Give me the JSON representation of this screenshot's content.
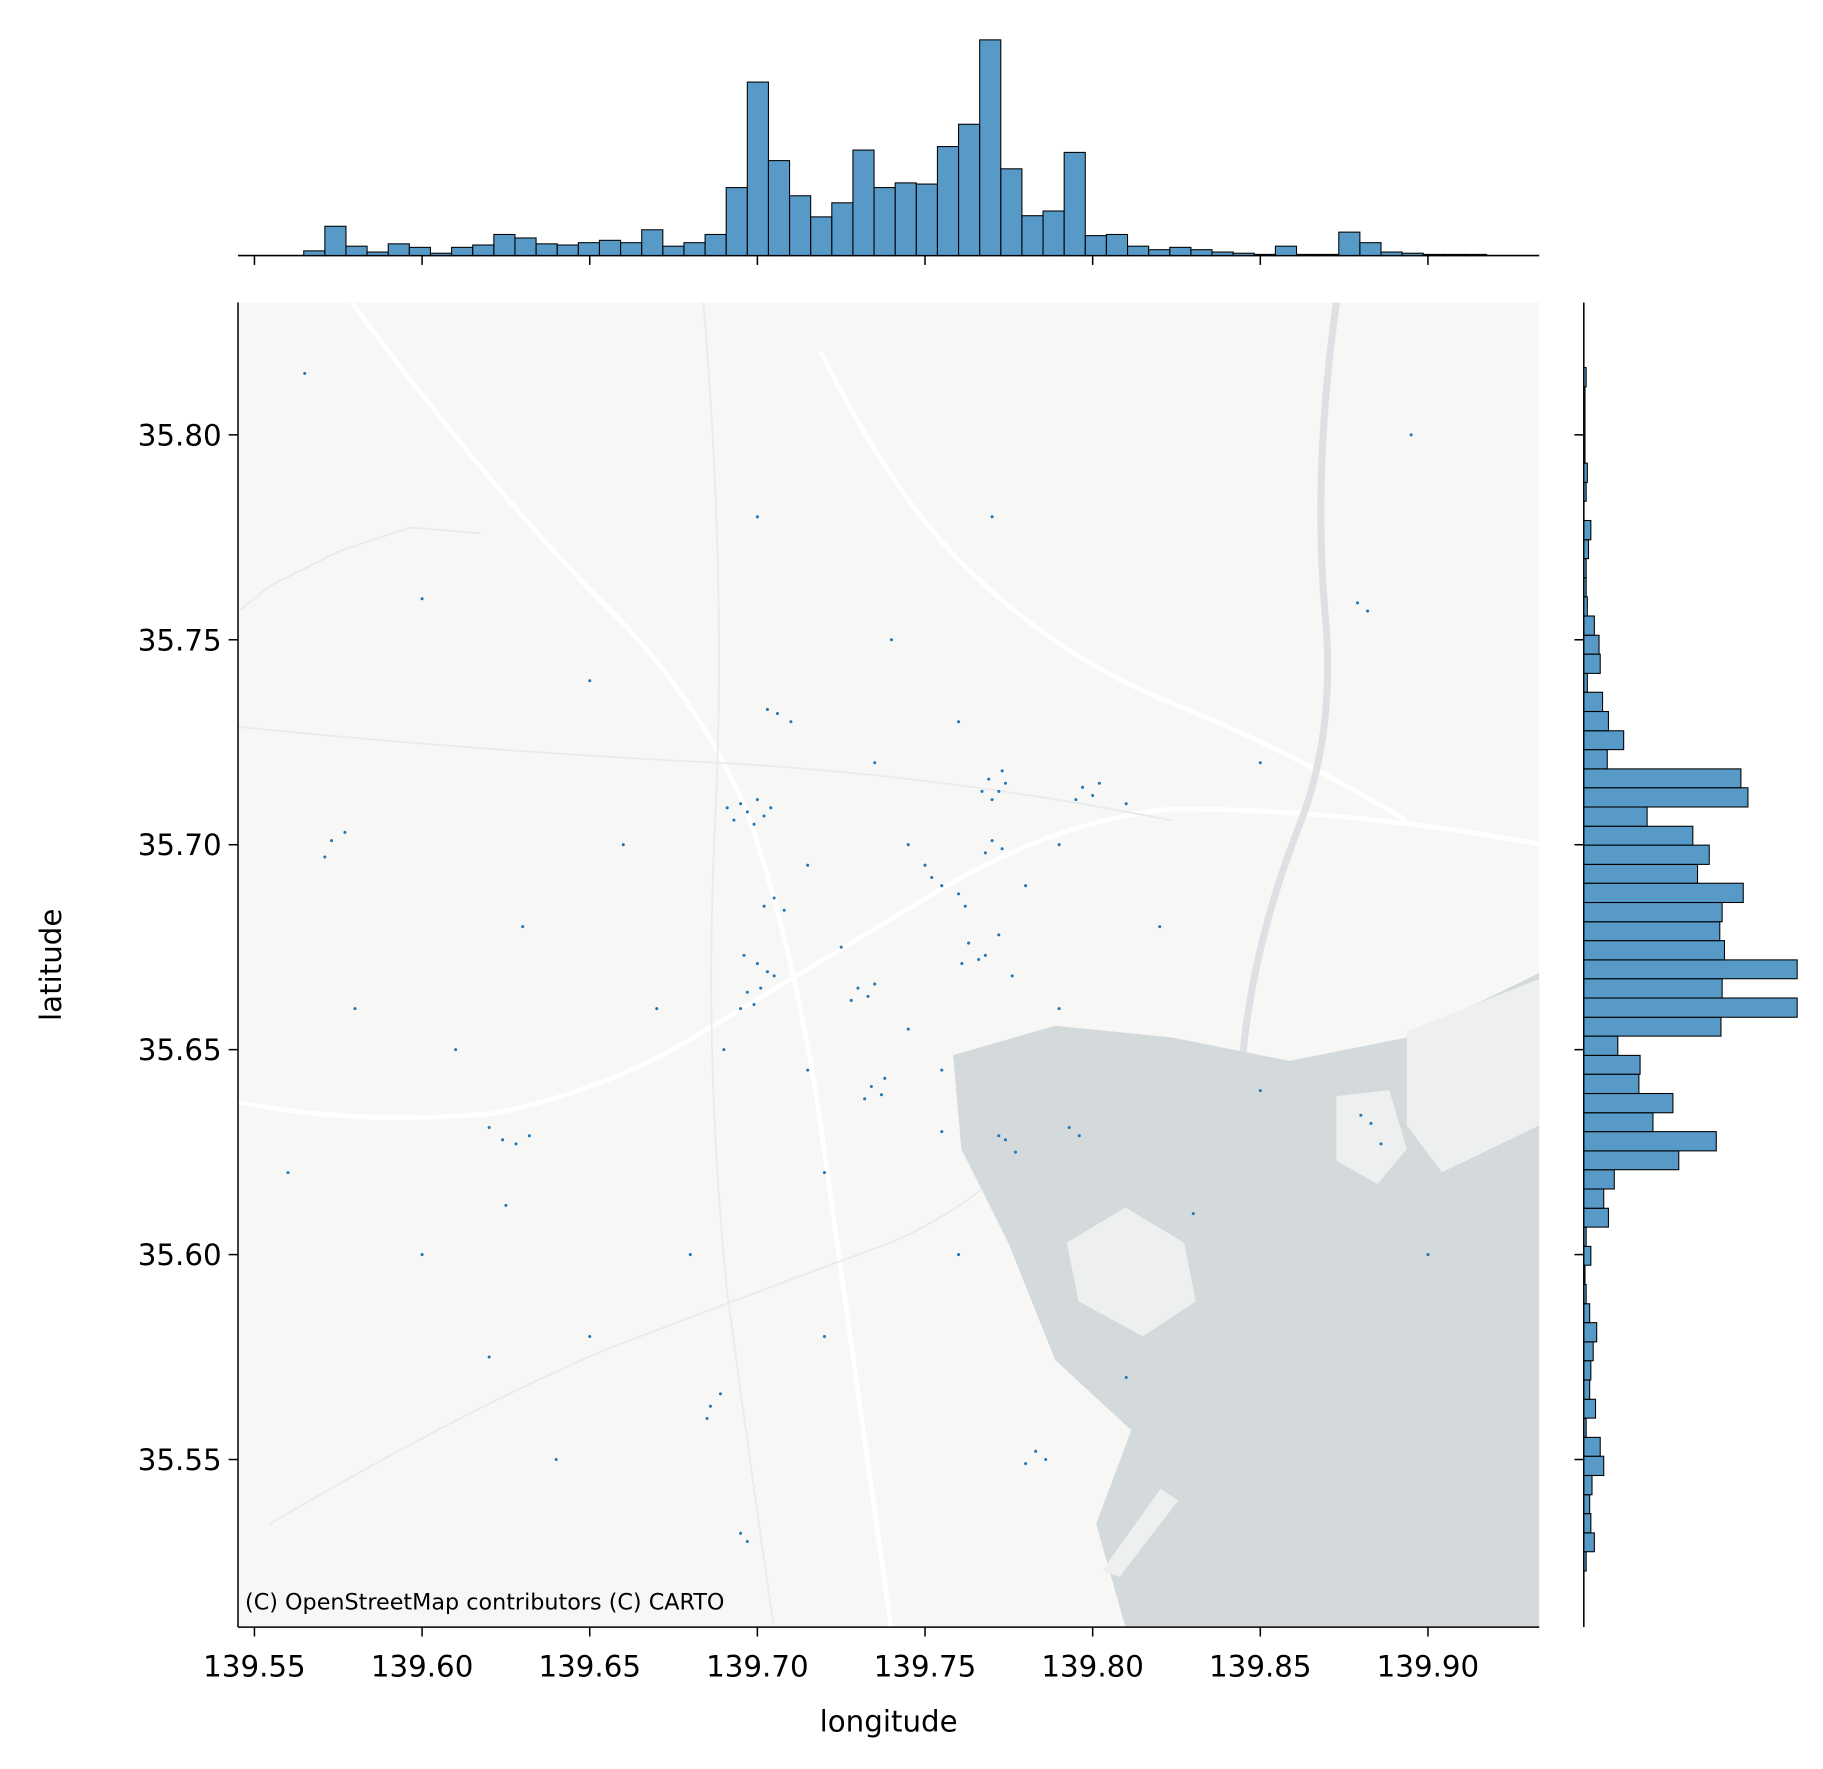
{
  "chart_data": [
    {
      "type": "scatter",
      "x_label": "longitude",
      "y_label": "latitude",
      "attribution": "(C) OpenStreetMap contributors (C) CARTO",
      "color": "#1f77b4",
      "x": [
        139.695,
        139.697,
        139.7,
        139.702,
        139.693,
        139.699,
        139.704,
        139.691,
        139.769,
        139.772,
        139.774,
        139.77,
        139.767,
        139.773,
        139.797,
        139.8,
        139.802,
        139.795,
        139.81,
        139.77,
        139.773,
        139.768,
        139.705,
        139.708,
        139.702,
        139.697,
        139.699,
        139.695,
        139.701,
        139.703,
        139.7,
        139.705,
        139.696,
        139.73,
        139.733,
        139.728,
        139.735,
        139.755,
        139.76,
        139.752,
        139.762,
        139.75,
        139.745,
        139.763,
        139.766,
        139.768,
        139.761,
        139.772,
        139.776,
        139.734,
        139.737,
        139.732,
        139.738,
        139.774,
        139.777,
        139.772,
        139.793,
        139.796,
        139.88,
        139.883,
        139.886,
        139.62,
        139.624,
        139.628,
        139.632,
        139.625,
        139.573,
        139.577,
        139.571,
        139.706,
        139.71,
        139.703,
        139.783,
        139.786,
        139.78,
        139.686,
        139.689,
        139.685,
        139.695,
        139.697,
        139.879,
        139.882,
        139.7,
        139.65,
        139.6,
        139.85,
        139.82,
        139.72,
        139.68,
        139.65,
        139.61,
        139.58,
        139.56,
        139.9,
        139.83,
        139.76,
        139.77,
        139.74,
        139.66,
        139.63,
        139.79,
        139.85,
        139.895,
        139.565,
        139.81,
        139.72,
        139.64,
        139.755,
        139.745,
        139.715,
        139.725,
        139.78,
        139.79,
        139.69,
        139.715,
        139.755,
        139.735,
        139.76,
        139.67,
        139.62,
        139.6
      ],
      "y": [
        35.71,
        35.708,
        35.711,
        35.707,
        35.706,
        35.705,
        35.709,
        35.709,
        35.716,
        35.713,
        35.715,
        35.711,
        35.713,
        35.718,
        35.714,
        35.712,
        35.715,
        35.711,
        35.71,
        35.701,
        35.699,
        35.698,
        35.687,
        35.684,
        35.685,
        35.664,
        35.661,
        35.66,
        35.665,
        35.669,
        35.671,
        35.668,
        35.673,
        35.665,
        35.663,
        35.662,
        35.666,
        35.69,
        35.688,
        35.692,
        35.685,
        35.695,
        35.7,
        35.676,
        35.672,
        35.673,
        35.671,
        35.678,
        35.668,
        35.641,
        35.639,
        35.638,
        35.643,
        35.628,
        35.625,
        35.629,
        35.631,
        35.629,
        35.634,
        35.632,
        35.627,
        35.631,
        35.628,
        35.627,
        35.629,
        35.612,
        35.701,
        35.703,
        35.697,
        35.732,
        35.73,
        35.733,
        35.552,
        35.55,
        35.549,
        35.563,
        35.566,
        35.56,
        35.532,
        35.53,
        35.759,
        35.757,
        35.78,
        35.74,
        35.76,
        35.72,
        35.68,
        35.62,
        35.6,
        35.58,
        35.65,
        35.66,
        35.62,
        35.6,
        35.61,
        35.6,
        35.78,
        35.75,
        35.7,
        35.68,
        35.66,
        35.64,
        35.8,
        35.815,
        35.57,
        35.58,
        35.55,
        35.645,
        35.655,
        35.695,
        35.675,
        35.69,
        35.7,
        35.65,
        35.645,
        35.63,
        35.72,
        35.73,
        35.66,
        35.575,
        35.6
      ],
      "xlim": [
        139.5451,
        139.9332
      ],
      "xticks": [
        139.55,
        {
          "value": 139.6,
          "label": "139.60"
        },
        139.65,
        {
          "value": 139.7,
          "label": "139.70"
        },
        139.75,
        {
          "value": 139.8,
          "label": "139.80"
        },
        139.85,
        {
          "value": 139.9,
          "label": "139.90"
        }
      ],
      "ylim": [
        35.5091,
        35.8323
      ],
      "yticks": [
        35.55,
        {
          "value": 35.6,
          "label": "35.60"
        },
        35.65,
        {
          "value": 35.7,
          "label": "35.70"
        },
        35.75,
        {
          "value": 35.8,
          "label": "35.80"
        }
      ]
    },
    {
      "type": "histogram",
      "orientation": "vertical",
      "color": "#1f77b4",
      "bins": [
        139.5647,
        139.571,
        139.5773,
        139.5836,
        139.5899,
        139.5962,
        139.6025,
        139.6088,
        139.6151,
        139.6214,
        139.6277,
        139.634,
        139.6403,
        139.6466,
        139.6529,
        139.6592,
        139.6655,
        139.6718,
        139.6781,
        139.6844,
        139.6907,
        139.697,
        139.7033,
        139.7096,
        139.7159,
        139.7222,
        139.7285,
        139.7348,
        139.7411,
        139.7474,
        139.7537,
        139.76,
        139.7663,
        139.7726,
        139.7789,
        139.7852,
        139.7915,
        139.7978,
        139.8041,
        139.8104,
        139.8167,
        139.823,
        139.8293,
        139.8356,
        139.8419,
        139.8482,
        139.8545,
        139.8608,
        139.8671,
        139.8734,
        139.8797,
        139.886,
        139.8923,
        139.8986,
        139.9049,
        139.9112,
        139.9175
      ],
      "counts": [
        4,
        25,
        8,
        3,
        10,
        7,
        2,
        7,
        9,
        18,
        15,
        10,
        9,
        11,
        13,
        11,
        22,
        8,
        11,
        18,
        58,
        148,
        81,
        51,
        33,
        45,
        90,
        58,
        62,
        61,
        93,
        112,
        184,
        74,
        34,
        38,
        88,
        17,
        18,
        8,
        5,
        7,
        5,
        3,
        2,
        1,
        8,
        1,
        1,
        20,
        11,
        3,
        2,
        1,
        1,
        1
      ],
      "xlim": [
        139.5451,
        139.9332
      ],
      "ylim": [
        0,
        190
      ]
    },
    {
      "type": "histogram",
      "orientation": "horizontal",
      "color": "#1f77b4",
      "bins": [
        35.5228,
        35.5275,
        35.5321,
        35.5368,
        35.5414,
        35.5461,
        35.5508,
        35.5554,
        35.5601,
        35.5647,
        35.5694,
        35.5741,
        35.5787,
        35.5834,
        35.588,
        35.5927,
        35.5974,
        35.602,
        35.6067,
        35.6113,
        35.616,
        35.6207,
        35.6253,
        35.63,
        35.6346,
        35.6393,
        35.644,
        35.6486,
        35.6533,
        35.6579,
        35.6626,
        35.6673,
        35.6719,
        35.6766,
        35.6812,
        35.6859,
        35.6906,
        35.6952,
        35.6999,
        35.7045,
        35.7092,
        35.7139,
        35.7185,
        35.7232,
        35.7278,
        35.7325,
        35.7372,
        35.7418,
        35.7465,
        35.7511,
        35.7558,
        35.7605,
        35.7651,
        35.7698,
        35.7744,
        35.7791,
        35.7838,
        35.7884,
        35.7931,
        35.7977,
        35.8024,
        35.8071,
        35.8117,
        35.8164
      ],
      "counts": [
        2,
        9,
        6,
        5,
        7,
        17,
        14,
        2,
        10,
        5,
        6,
        8,
        11,
        5,
        2,
        1,
        6,
        2,
        21,
        17,
        26,
        81,
        113,
        59,
        76,
        47,
        48,
        29,
        117,
        182,
        118,
        182,
        120,
        116,
        118,
        136,
        97,
        107,
        93,
        54,
        140,
        134,
        20,
        34,
        21,
        16,
        3,
        14,
        13,
        9,
        3,
        2,
        2,
        4,
        6,
        0,
        2,
        3,
        1,
        1,
        1,
        1,
        2
      ],
      "ylim": [
        35.5091,
        35.8323
      ],
      "xlim": [
        0,
        185
      ]
    }
  ]
}
